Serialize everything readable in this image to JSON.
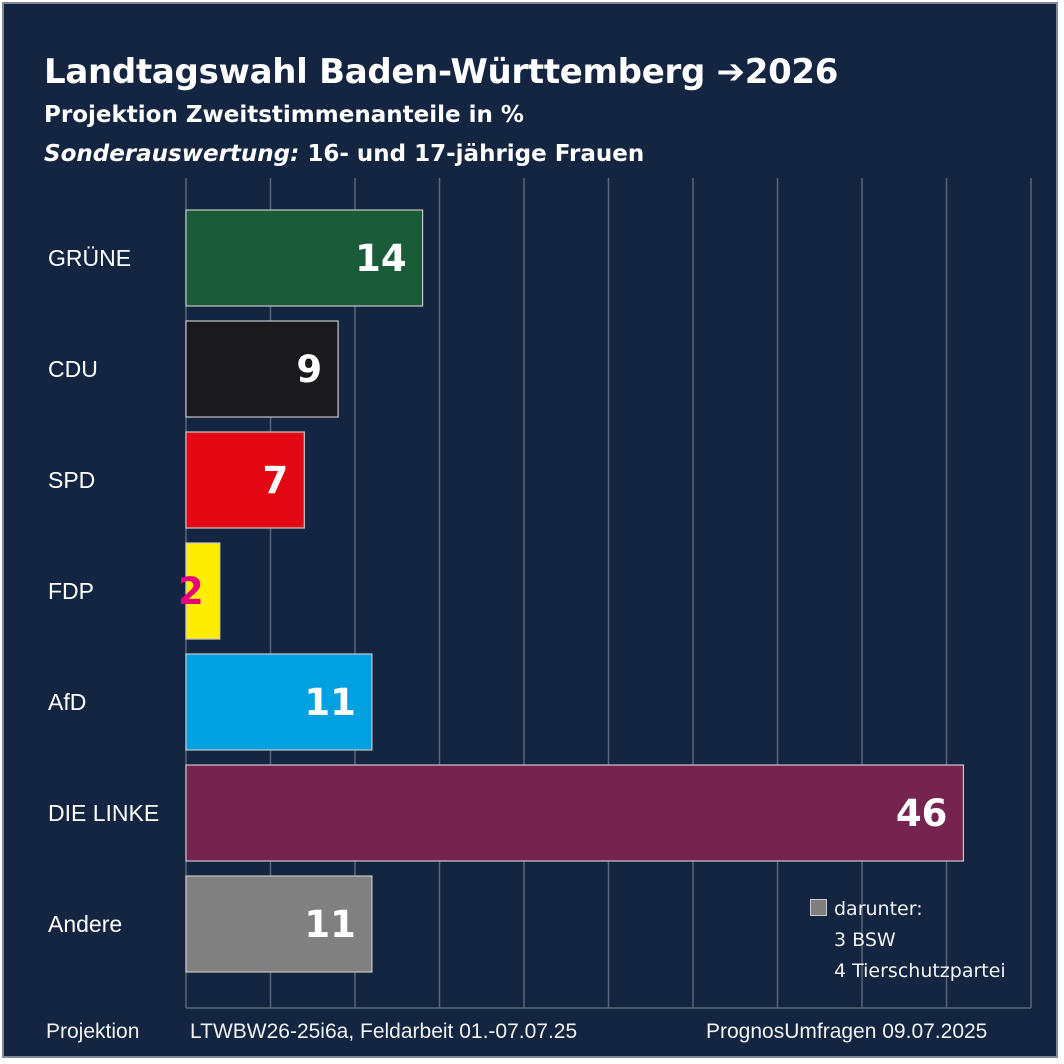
{
  "title": "Landtagswahl Baden-Württemberg ➔2026",
  "subtitle": "Projektion Zweitstimmenanteile in %",
  "subtitle2_italic": "Sonderauswertung:",
  "subtitle2_rest": " 16- und 17-jährige Frauen",
  "note": {
    "heading": "darunter:",
    "line1": "3 BSW",
    "line2": "4 Tierschutzpartei"
  },
  "footer": {
    "left": "Projektion",
    "middle": "LTWBW26-25i6a, Feldarbeit 01.-07.07.25",
    "right": "PrognosUmfragen 09.07.2025"
  },
  "colors": {
    "background": "#132540",
    "grid": "#5a6677"
  },
  "chart_data": {
    "type": "bar",
    "orientation": "horizontal",
    "title": "Landtagswahl Baden-Württemberg ➔2026",
    "xlabel": "",
    "ylabel": "",
    "xlim": [
      0,
      50
    ],
    "grid": true,
    "categories": [
      "GRÜNE",
      "CDU",
      "SPD",
      "FDP",
      "AfD",
      "DIE LINKE",
      "Andere"
    ],
    "values": [
      14,
      9,
      7,
      2,
      11,
      46,
      11
    ],
    "labels": [
      "14",
      "9",
      "7",
      "2",
      "11",
      "46",
      "11"
    ],
    "bar_colors": [
      "#1a5c3a",
      "#1a1a1e",
      "#e30613",
      "#ffed00",
      "#00a0e1",
      "#77234f",
      "#808080"
    ],
    "label_colors": [
      "#ffffff",
      "#ffffff",
      "#ffffff",
      "#e6007e",
      "#ffffff",
      "#ffffff",
      "#ffffff"
    ]
  }
}
